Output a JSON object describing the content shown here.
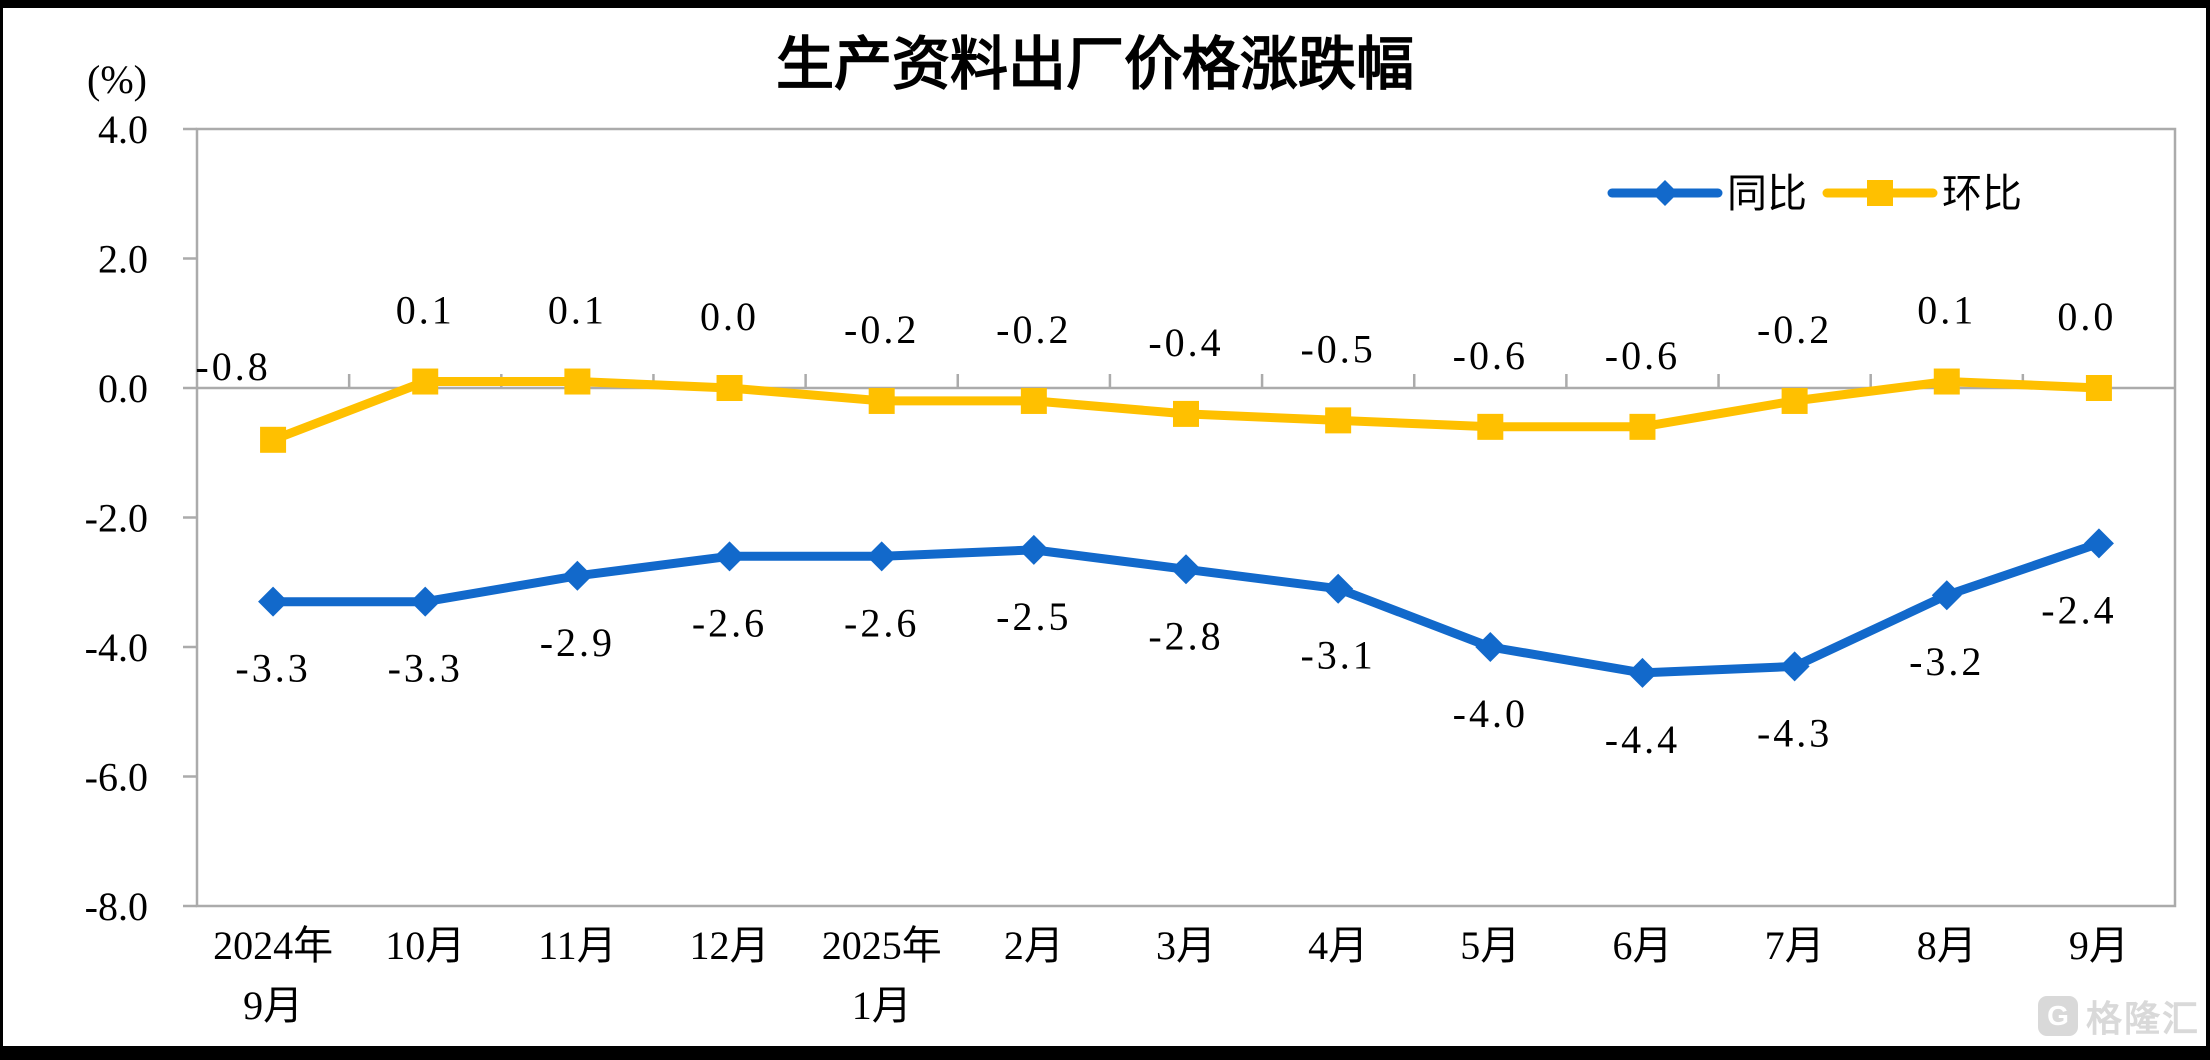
{
  "watermark": {
    "logo_letter": "G",
    "text": "格隆汇"
  },
  "chart_data": {
    "type": "line",
    "title": "生产资料出厂价格涨跌幅",
    "unit_label": "(%)",
    "categories": [
      [
        "2024年",
        "9月"
      ],
      [
        "10月"
      ],
      [
        "11月"
      ],
      [
        "12月"
      ],
      [
        "2025年",
        "1月"
      ],
      [
        "2月"
      ],
      [
        "3月"
      ],
      [
        "4月"
      ],
      [
        "5月"
      ],
      [
        "6月"
      ],
      [
        "7月"
      ],
      [
        "8月"
      ],
      [
        "9月"
      ]
    ],
    "ylim": [
      -8,
      4
    ],
    "y_ticks": [
      4,
      2,
      0,
      -2,
      -4,
      -6,
      -8
    ],
    "y_tick_labels": [
      "4.0",
      "2.0",
      "0.0",
      "-2.0",
      "-4.0",
      "-6.0",
      "-8.0"
    ],
    "grid": false,
    "legend_position": "top-right-inside",
    "axis_color": "#ABABAB",
    "series": [
      {
        "name": "同比",
        "color": "#1269CB",
        "marker": "diamond",
        "label_side": "below",
        "values": [
          -3.3,
          -3.3,
          -2.9,
          -2.6,
          -2.6,
          -2.5,
          -2.8,
          -3.1,
          -4.0,
          -4.4,
          -4.3,
          -3.2,
          -2.4
        ],
        "labels": [
          "-3.3",
          "-3.3",
          "-2.9",
          "-2.6",
          "-2.6",
          "-2.5",
          "-2.8",
          "-3.1",
          "-4.0",
          "-4.4",
          "-4.3",
          "-3.2",
          "-2.4"
        ]
      },
      {
        "name": "环比",
        "color": "#FFC000",
        "marker": "square",
        "label_side": "above",
        "values": [
          -0.8,
          0.1,
          0.1,
          0.0,
          -0.2,
          -0.2,
          -0.4,
          -0.5,
          -0.6,
          -0.6,
          -0.2,
          0.1,
          0.0
        ],
        "labels": [
          "-0.8",
          "0.1",
          "0.1",
          "0.0",
          "-0.2",
          "-0.2",
          "-0.4",
          "-0.5",
          "-0.6",
          "-0.6",
          "-0.2",
          "0.1",
          "0.0"
        ]
      }
    ]
  }
}
